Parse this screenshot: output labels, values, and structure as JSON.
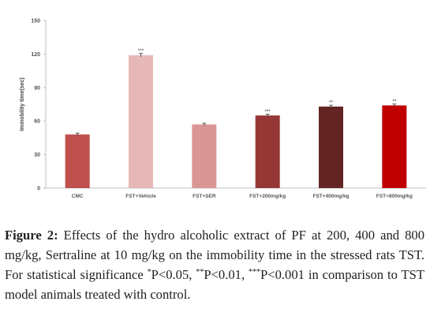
{
  "chart_data": {
    "type": "bar",
    "ylabel": "Immobility time(sec)",
    "ylim": [
      0,
      150
    ],
    "yticks": [
      0,
      30,
      60,
      90,
      120,
      150
    ],
    "grid": false,
    "legend": "none",
    "categories": [
      "CMC",
      "FST+Vehicle",
      "FST+SER",
      "FST+200mg/kg",
      "FST+400mg/kg",
      "FST+800mg/kg"
    ],
    "values": [
      48,
      119,
      57,
      65,
      73,
      74
    ],
    "errors": [
      1.2,
      1.5,
      1.0,
      1.2,
      1.2,
      1.2
    ],
    "significance": [
      "",
      "***",
      "",
      "***",
      "**",
      "**"
    ],
    "colors": [
      "#c0504d",
      "#e6b9b8",
      "#d99694",
      "#953735",
      "#632523",
      "#c00000"
    ]
  },
  "caption": {
    "label": "Figure 2:",
    "part1": " Effects of the hydro alcoholic extract of PF at 200, 400 and 800 mg/kg, Sertraline at 10 mg/kg on the immobility time in the stressed rats TST. For statistical significance ",
    "sig1_sup": "*",
    "sig1_text": "P<0.05, ",
    "sig2_sup": "**",
    "sig2_text": "P<0.01, ",
    "sig3_sup": "***",
    "sig3_text": "P<0.001 in comparison to TST model animals treated with control."
  }
}
